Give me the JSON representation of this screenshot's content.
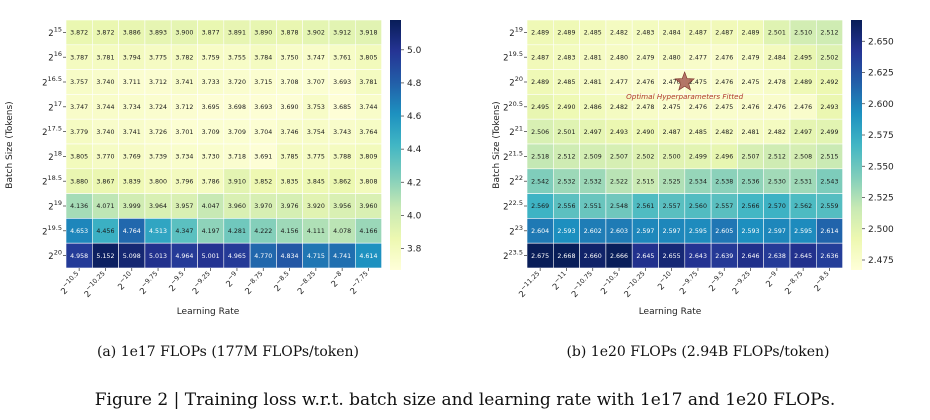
{
  "caption": "Figure 2 | Training loss w.r.t. batch size and learning rate with 1e17 and 1e20 FLOPs.",
  "chart_data": [
    {
      "type": "heatmap",
      "subcaption": "(a)  1e17 FLOPs (177M FLOPs/token)",
      "xlabel": "Learning Rate",
      "ylabel": "Batch Size (Tokens)",
      "x_ticks": [
        {
          "base": "2",
          "exp": "−10.5"
        },
        {
          "base": "2",
          "exp": "−10.25"
        },
        {
          "base": "2",
          "exp": "−10"
        },
        {
          "base": "2",
          "exp": "−9.75"
        },
        {
          "base": "2",
          "exp": "−9.5"
        },
        {
          "base": "2",
          "exp": "−9.25"
        },
        {
          "base": "2",
          "exp": "−9"
        },
        {
          "base": "2",
          "exp": "−8.75"
        },
        {
          "base": "2",
          "exp": "−8.5"
        },
        {
          "base": "2",
          "exp": "−8.25"
        },
        {
          "base": "2",
          "exp": "−8"
        },
        {
          "base": "2",
          "exp": "−7.75"
        }
      ],
      "y_ticks": [
        {
          "base": "2",
          "exp": "15"
        },
        {
          "base": "2",
          "exp": "16"
        },
        {
          "base": "2",
          "exp": "16.5"
        },
        {
          "base": "2",
          "exp": "17"
        },
        {
          "base": "2",
          "exp": "17.5"
        },
        {
          "base": "2",
          "exp": "18"
        },
        {
          "base": "2",
          "exp": "18.5"
        },
        {
          "base": "2",
          "exp": "19"
        },
        {
          "base": "2",
          "exp": "19.5"
        },
        {
          "base": "2",
          "exp": "20"
        }
      ],
      "values": [
        [
          3.872,
          3.872,
          3.886,
          3.893,
          3.9,
          3.877,
          3.891,
          3.89,
          3.878,
          3.902,
          3.912,
          3.918
        ],
        [
          3.787,
          3.781,
          3.794,
          3.775,
          3.782,
          3.759,
          3.755,
          3.784,
          3.75,
          3.747,
          3.761,
          3.805
        ],
        [
          3.757,
          3.74,
          3.711,
          3.712,
          3.741,
          3.733,
          3.72,
          3.715,
          3.708,
          3.707,
          3.693,
          3.781
        ],
        [
          3.747,
          3.744,
          3.734,
          3.724,
          3.712,
          3.695,
          3.698,
          3.693,
          3.69,
          3.753,
          3.685,
          3.744
        ],
        [
          3.779,
          3.74,
          3.741,
          3.726,
          3.701,
          3.709,
          3.709,
          3.704,
          3.746,
          3.754,
          3.743,
          3.764
        ],
        [
          3.805,
          3.77,
          3.769,
          3.739,
          3.734,
          3.73,
          3.718,
          3.691,
          3.785,
          3.775,
          3.788,
          3.809
        ],
        [
          3.88,
          3.867,
          3.839,
          3.8,
          3.796,
          3.786,
          3.91,
          3.852,
          3.835,
          3.845,
          3.862,
          3.808
        ],
        [
          4.136,
          4.071,
          3.999,
          3.964,
          3.957,
          4.047,
          3.96,
          3.97,
          3.976,
          3.92,
          3.956,
          3.96
        ],
        [
          4.653,
          4.456,
          4.764,
          4.513,
          4.347,
          4.197,
          4.281,
          4.222,
          4.156,
          4.111,
          4.078,
          4.166
        ],
        [
          4.958,
          5.152,
          5.098,
          5.013,
          4.964,
          5.001,
          4.965,
          4.77,
          4.834,
          4.715,
          4.741,
          4.614
        ]
      ],
      "vmin": 3.67,
      "vmax": 5.18,
      "colorbar_ticks": [
        "3.8",
        "4.0",
        "4.2",
        "4.4",
        "4.6",
        "4.8",
        "5.0"
      ],
      "colormap": [
        "#ffffd9",
        "#edf8b1",
        "#c7e9b4",
        "#7fcdbb",
        "#41b6c4",
        "#1d91c0",
        "#225ea8",
        "#253494",
        "#081d58"
      ]
    },
    {
      "type": "heatmap",
      "subcaption": "(b)  1e20 FLOPs (2.94B FLOPs/token)",
      "xlabel": "Learning Rate",
      "ylabel": "Batch Size (Tokens)",
      "x_ticks": [
        {
          "base": "2",
          "exp": "−11.25"
        },
        {
          "base": "2",
          "exp": "−11"
        },
        {
          "base": "2",
          "exp": "−10.75"
        },
        {
          "base": "2",
          "exp": "−10.5"
        },
        {
          "base": "2",
          "exp": "−10.25"
        },
        {
          "base": "2",
          "exp": "−10"
        },
        {
          "base": "2",
          "exp": "−9.75"
        },
        {
          "base": "2",
          "exp": "−9.5"
        },
        {
          "base": "2",
          "exp": "−9.25"
        },
        {
          "base": "2",
          "exp": "−9"
        },
        {
          "base": "2",
          "exp": "−8.75"
        },
        {
          "base": "2",
          "exp": "−8.5"
        }
      ],
      "y_ticks": [
        {
          "base": "2",
          "exp": "19"
        },
        {
          "base": "2",
          "exp": "19.5"
        },
        {
          "base": "2",
          "exp": "20"
        },
        {
          "base": "2",
          "exp": "20.5"
        },
        {
          "base": "2",
          "exp": "21"
        },
        {
          "base": "2",
          "exp": "21.5"
        },
        {
          "base": "2",
          "exp": "22"
        },
        {
          "base": "2",
          "exp": "22.5"
        },
        {
          "base": "2",
          "exp": "23"
        },
        {
          "base": "2",
          "exp": "23.5"
        }
      ],
      "values": [
        [
          2.489,
          2.489,
          2.485,
          2.482,
          2.483,
          2.484,
          2.487,
          2.487,
          2.489,
          2.501,
          2.51,
          2.512
        ],
        [
          2.487,
          2.483,
          2.481,
          2.48,
          2.479,
          2.48,
          2.477,
          2.476,
          2.479,
          2.484,
          2.495,
          2.502
        ],
        [
          2.489,
          2.485,
          2.481,
          2.477,
          2.476,
          2.47,
          2.475,
          2.476,
          2.475,
          2.478,
          2.489,
          2.492
        ],
        [
          2.495,
          2.49,
          2.486,
          2.482,
          2.478,
          2.475,
          2.476,
          2.475,
          2.476,
          2.476,
          2.476,
          2.493
        ],
        [
          2.506,
          2.501,
          2.497,
          2.493,
          2.49,
          2.487,
          2.485,
          2.482,
          2.481,
          2.482,
          2.497,
          2.499
        ],
        [
          2.518,
          2.512,
          2.509,
          2.507,
          2.502,
          2.5,
          2.499,
          2.496,
          2.507,
          2.512,
          2.508,
          2.515
        ],
        [
          2.542,
          2.532,
          2.532,
          2.522,
          2.515,
          2.525,
          2.534,
          2.538,
          2.536,
          2.53,
          2.531,
          2.543
        ],
        [
          2.569,
          2.556,
          2.551,
          2.548,
          2.561,
          2.557,
          2.56,
          2.557,
          2.566,
          2.57,
          2.562,
          2.559
        ],
        [
          2.604,
          2.593,
          2.602,
          2.603,
          2.597,
          2.597,
          2.595,
          2.605,
          2.593,
          2.597,
          2.595,
          2.614
        ],
        [
          2.675,
          2.668,
          2.66,
          2.666,
          2.645,
          2.655,
          2.643,
          2.639,
          2.646,
          2.638,
          2.645,
          2.636
        ]
      ],
      "vmin": 2.467,
      "vmax": 2.667,
      "colorbar_ticks": [
        "2.475",
        "2.500",
        "2.525",
        "2.550",
        "2.575",
        "2.600",
        "2.625",
        "2.650"
      ],
      "colormap": [
        "#ffffd9",
        "#edf8b1",
        "#c7e9b4",
        "#7fcdbb",
        "#41b6c4",
        "#1d91c0",
        "#225ea8",
        "#253494",
        "#081d58"
      ],
      "annotation": {
        "text": "Optimal Hyperparameters Fitted",
        "row": 2,
        "col": 5
      }
    }
  ]
}
